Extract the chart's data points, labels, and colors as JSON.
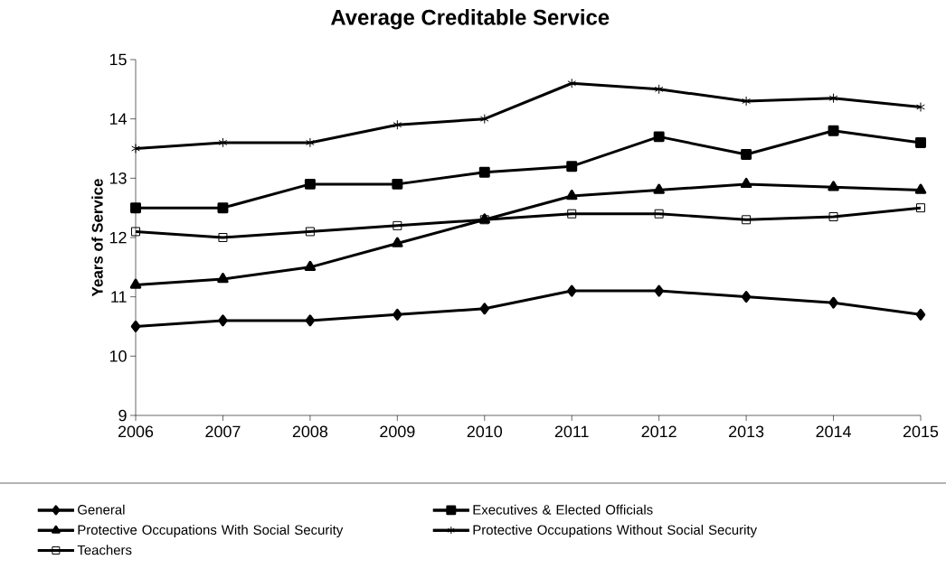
{
  "chart_data": {
    "type": "line",
    "title": "Average Creditable Service",
    "ylabel": "Years of Service",
    "x": [
      2006,
      2007,
      2008,
      2009,
      2010,
      2011,
      2012,
      2013,
      2014,
      2015
    ],
    "xlim": [
      2006,
      2015
    ],
    "xticks": [
      2006,
      2007,
      2008,
      2009,
      2010,
      2011,
      2012,
      2013,
      2014,
      2015
    ],
    "ylim": [
      9,
      15
    ],
    "yticks": [
      9,
      10,
      11,
      12,
      13,
      14,
      15
    ],
    "grid": false,
    "legend": "bottom",
    "line_style": "solid",
    "series": [
      {
        "name": "General",
        "color": "#000000",
        "marker": "diamond",
        "values": [
          10.5,
          10.6,
          10.6,
          10.7,
          10.8,
          11.1,
          11.1,
          11.0,
          10.9,
          10.7
        ]
      },
      {
        "name": "Executives & Elected Officials",
        "color": "#000000",
        "marker": "square",
        "values": [
          12.5,
          12.5,
          12.9,
          12.9,
          13.1,
          13.2,
          13.7,
          13.4,
          13.8,
          13.6
        ]
      },
      {
        "name": "Protective Occupations With Social Security",
        "color": "#000000",
        "marker": "triangle",
        "values": [
          11.2,
          11.3,
          11.5,
          11.9,
          12.3,
          12.7,
          12.8,
          12.9,
          12.85,
          12.8
        ]
      },
      {
        "name": "Protective Occupations Without Social Security",
        "color": "#000000",
        "marker": "cross",
        "values": [
          13.5,
          13.6,
          13.6,
          13.9,
          14.0,
          14.6,
          14.5,
          14.3,
          14.35,
          14.2
        ]
      },
      {
        "name": "Teachers",
        "color": "#000000",
        "marker": "square",
        "values": [
          12.1,
          12.0,
          12.1,
          12.2,
          12.3,
          12.4,
          12.4,
          12.3,
          12.35,
          12.5
        ]
      }
    ]
  }
}
